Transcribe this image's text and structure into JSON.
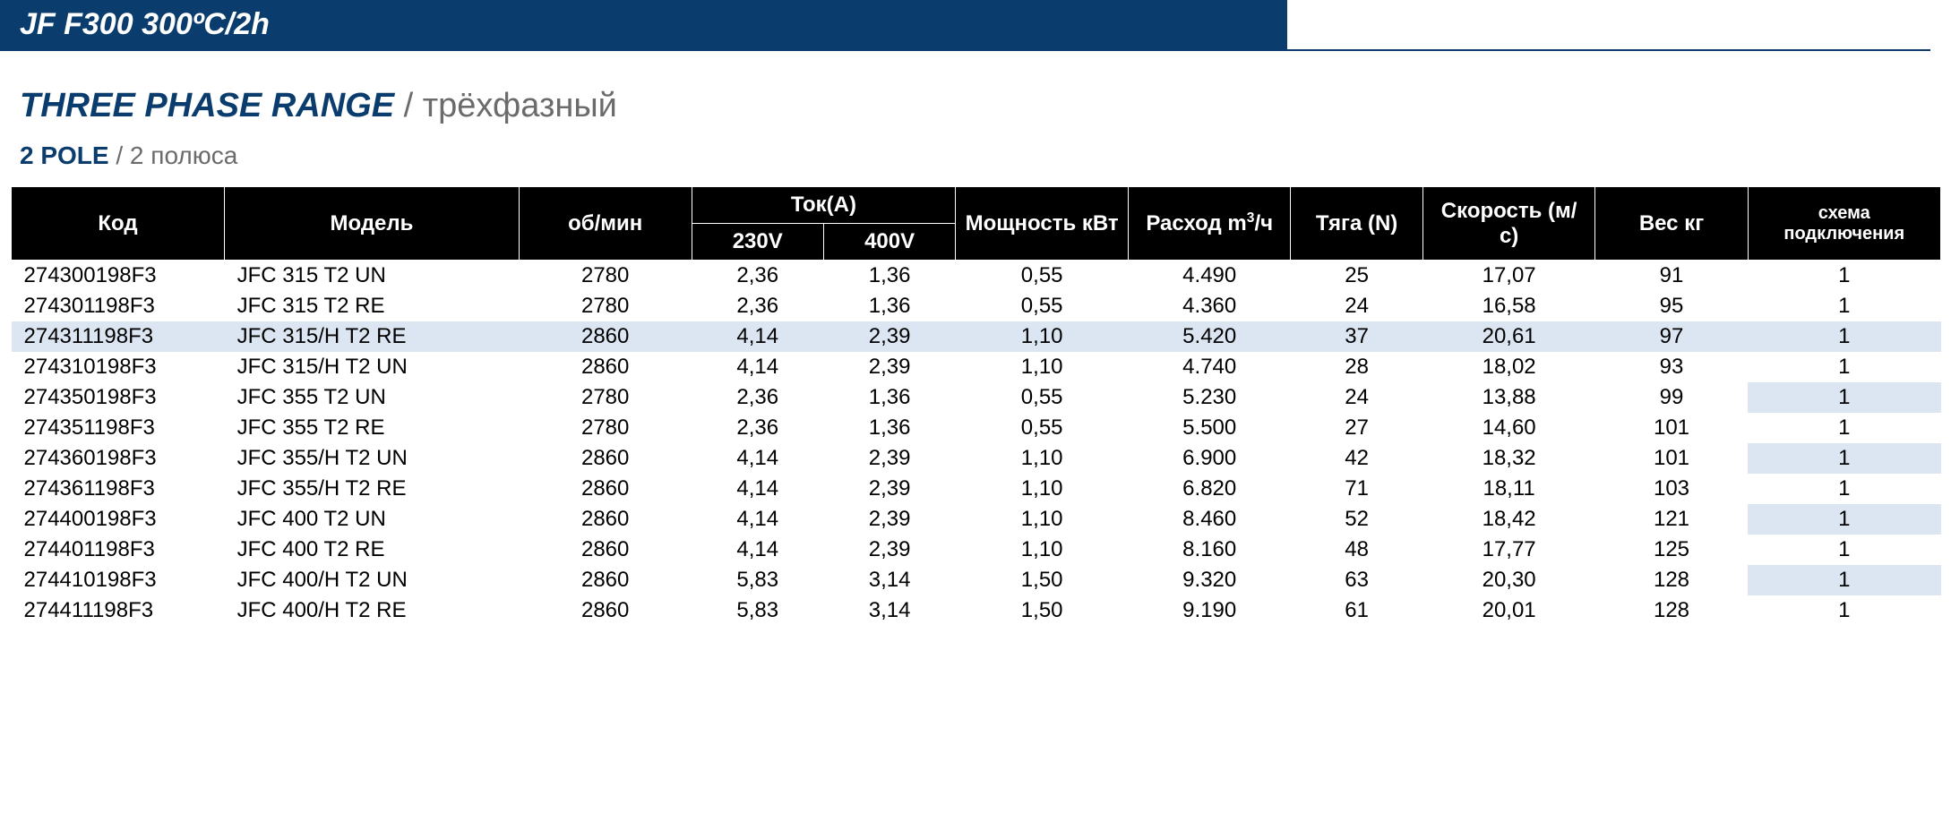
{
  "banner": "JF F300 300ºC/2h",
  "heading": {
    "primary": "THREE PHASE RANGE",
    "secondary": " / трёхфазный"
  },
  "subheading": {
    "primary": "2 POLE",
    "secondary": " / 2 полюса"
  },
  "columns": {
    "code": "Код",
    "model": "Модель",
    "rpm": "об/мин",
    "current_group": "Ток(А)",
    "v230": "230V",
    "v400": "400V",
    "power": "Мощность кВт",
    "flow": "Расход m³/ч",
    "thrust": "Тяга (N)",
    "speed": "Скорость (м/с)",
    "weight": "Вес кг",
    "wiring": "схема подключения"
  },
  "rows": [
    {
      "code": "274300198F3",
      "model": "JFC 315 T2 UN",
      "rpm": "2780",
      "i230": "2,36",
      "i400": "1,36",
      "kw": "0,55",
      "flow": "4.490",
      "thrust": "25",
      "speed": "17,07",
      "weight": "91",
      "wiring": "1",
      "alt": false
    },
    {
      "code": "274301198F3",
      "model": "JFC 315 T2 RE",
      "rpm": "2780",
      "i230": "2,36",
      "i400": "1,36",
      "kw": "0,55",
      "flow": "4.360",
      "thrust": "24",
      "speed": "16,58",
      "weight": "95",
      "wiring": "1",
      "alt": false
    },
    {
      "code": "274311198F3",
      "model": "JFC 315/H T2 RE",
      "rpm": "2860",
      "i230": "4,14",
      "i400": "2,39",
      "kw": "1,10",
      "flow": "5.420",
      "thrust": "37",
      "speed": "20,61",
      "weight": "97",
      "wiring": "1",
      "alt": true
    },
    {
      "code": "274310198F3",
      "model": "JFC 315/H T2 UN",
      "rpm": "2860",
      "i230": "4,14",
      "i400": "2,39",
      "kw": "1,10",
      "flow": "4.740",
      "thrust": "28",
      "speed": "18,02",
      "weight": "93",
      "wiring": "1",
      "alt": false
    },
    {
      "code": "274350198F3",
      "model": "JFC 355 T2 UN",
      "rpm": "2780",
      "i230": "2,36",
      "i400": "1,36",
      "kw": "0,55",
      "flow": "5.230",
      "thrust": "24",
      "speed": "13,88",
      "weight": "99",
      "wiring": "1",
      "alt": true,
      "wiringOnlyAlt": true
    },
    {
      "code": "274351198F3",
      "model": "JFC 355 T2 RE",
      "rpm": "2780",
      "i230": "2,36",
      "i400": "1,36",
      "kw": "0,55",
      "flow": "5.500",
      "thrust": "27",
      "speed": "14,60",
      "weight": "101",
      "wiring": "1",
      "alt": false
    },
    {
      "code": "274360198F3",
      "model": "JFC 355/H T2 UN",
      "rpm": "2860",
      "i230": "4,14",
      "i400": "2,39",
      "kw": "1,10",
      "flow": "6.900",
      "thrust": "42",
      "speed": "18,32",
      "weight": "101",
      "wiring": "1",
      "alt": true,
      "wiringOnlyAlt": true
    },
    {
      "code": "274361198F3",
      "model": "JFC 355/H T2 RE",
      "rpm": "2860",
      "i230": "4,14",
      "i400": "2,39",
      "kw": "1,10",
      "flow": "6.820",
      "thrust": "71",
      "speed": "18,11",
      "weight": "103",
      "wiring": "1",
      "alt": false
    },
    {
      "code": "274400198F3",
      "model": "JFC 400 T2 UN",
      "rpm": "2860",
      "i230": "4,14",
      "i400": "2,39",
      "kw": "1,10",
      "flow": "8.460",
      "thrust": "52",
      "speed": "18,42",
      "weight": "121",
      "wiring": "1",
      "alt": true,
      "wiringOnlyAlt": true
    },
    {
      "code": "274401198F3",
      "model": "JFC 400 T2 RE",
      "rpm": "2860",
      "i230": "4,14",
      "i400": "2,39",
      "kw": "1,10",
      "flow": "8.160",
      "thrust": "48",
      "speed": "17,77",
      "weight": "125",
      "wiring": "1",
      "alt": false
    },
    {
      "code": "274410198F3",
      "model": "JFC 400/H T2 UN",
      "rpm": "2860",
      "i230": "5,83",
      "i400": "3,14",
      "kw": "1,50",
      "flow": "9.320",
      "thrust": "63",
      "speed": "20,30",
      "weight": "128",
      "wiring": "1",
      "alt": true,
      "wiringOnlyAlt": true
    },
    {
      "code": "274411198F3",
      "model": "JFC 400/H T2 RE",
      "rpm": "2860",
      "i230": "5,83",
      "i400": "3,14",
      "kw": "1,50",
      "flow": "9.190",
      "thrust": "61",
      "speed": "20,01",
      "weight": "128",
      "wiring": "1",
      "alt": false
    }
  ],
  "col_widths": {
    "code": 210,
    "model": 290,
    "rpm": 170,
    "i230": 130,
    "i400": 130,
    "kw": 170,
    "flow": 160,
    "thrust": 130,
    "speed": 170,
    "weight": 150,
    "wiring": 190
  }
}
